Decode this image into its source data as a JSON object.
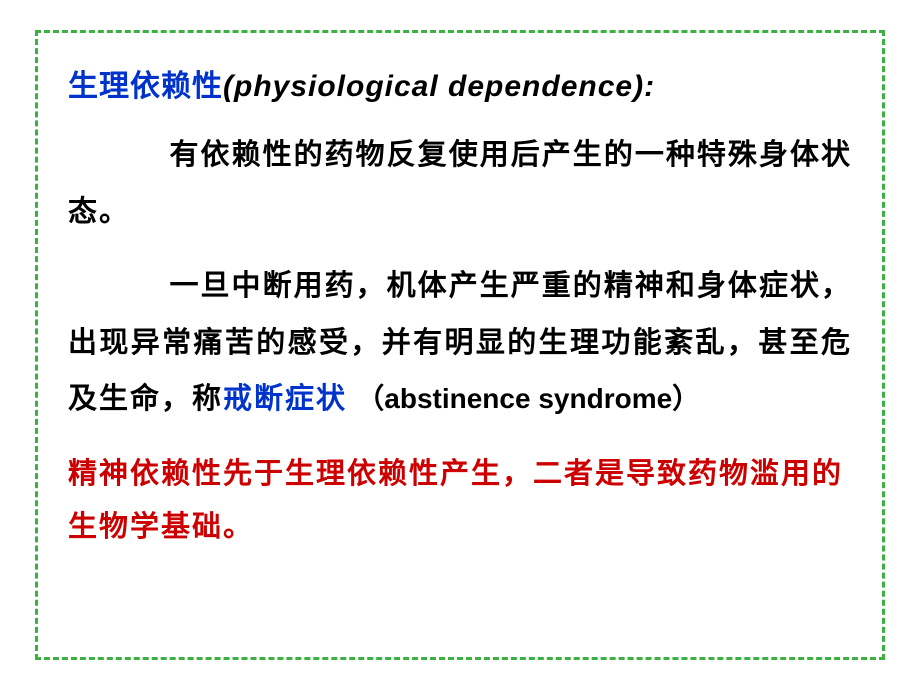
{
  "border_color": "#3cb043",
  "border_style": "dashed",
  "background_color": "#ffffff",
  "text_colors": {
    "black": "#000000",
    "blue": "#0033cc",
    "red": "#cc0000"
  },
  "font_sizes": {
    "title": 30,
    "body": 29
  },
  "title": {
    "cn": "生理依赖性",
    "en": "(physiological dependence):"
  },
  "para1": "有依赖性的药物反复使用后产生的一种特殊身体状态。",
  "para2_prefix": "一旦中断用药，机体产生严重的精神和身体症状，出现异常痛苦的感受，并有明显的生理功能紊乱，甚至危及生命，称",
  "term": {
    "cn": "戒断症状",
    "en": "（abstinence syndrome）"
  },
  "red_para": "精神依赖性先于生理依赖性产生，二者是导致药物滥用的生物学基础。"
}
